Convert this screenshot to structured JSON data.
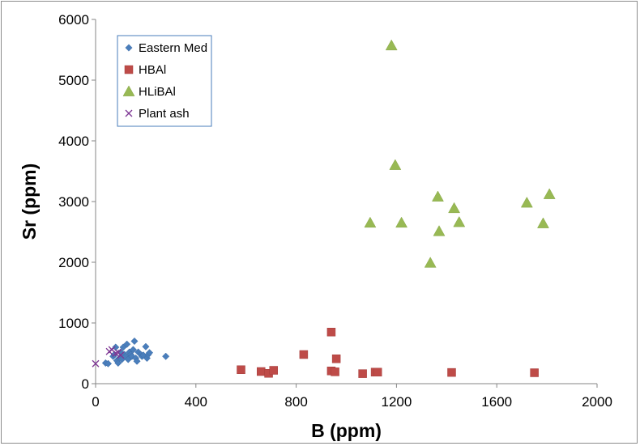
{
  "chart_data": {
    "type": "scatter",
    "title": "",
    "xlabel": "B (ppm)",
    "ylabel": "Sr (ppm)",
    "xlim": [
      0,
      2000
    ],
    "ylim": [
      0,
      6000
    ],
    "xticks": [
      "0",
      "400",
      "800",
      "1200",
      "1600",
      "2000"
    ],
    "yticks": [
      "0",
      "1000",
      "2000",
      "3000",
      "4000",
      "5000",
      "6000"
    ],
    "grid": false,
    "legend_position": "top-left",
    "series": [
      {
        "name": "Eastern Med",
        "marker": "diamond",
        "color": "#4a7ebb",
        "points": [
          [
            40,
            340
          ],
          [
            50,
            330
          ],
          [
            70,
            450
          ],
          [
            75,
            480
          ],
          [
            80,
            600
          ],
          [
            85,
            380
          ],
          [
            90,
            340
          ],
          [
            95,
            420
          ],
          [
            100,
            520
          ],
          [
            105,
            400
          ],
          [
            110,
            600
          ],
          [
            115,
            480
          ],
          [
            120,
            450
          ],
          [
            125,
            650
          ],
          [
            130,
            400
          ],
          [
            135,
            520
          ],
          [
            140,
            480
          ],
          [
            145,
            450
          ],
          [
            150,
            560
          ],
          [
            155,
            700
          ],
          [
            160,
            420
          ],
          [
            165,
            370
          ],
          [
            170,
            520
          ],
          [
            180,
            480
          ],
          [
            185,
            450
          ],
          [
            190,
            470
          ],
          [
            200,
            610
          ],
          [
            205,
            420
          ],
          [
            210,
            480
          ],
          [
            215,
            510
          ],
          [
            280,
            450
          ]
        ]
      },
      {
        "name": "HBAl",
        "marker": "square",
        "color": "#be4b48",
        "points": [
          [
            580,
            230
          ],
          [
            660,
            200
          ],
          [
            690,
            170
          ],
          [
            710,
            220
          ],
          [
            830,
            480
          ],
          [
            940,
            850
          ],
          [
            940,
            210
          ],
          [
            955,
            195
          ],
          [
            960,
            410
          ],
          [
            1065,
            165
          ],
          [
            1115,
            190
          ],
          [
            1125,
            190
          ],
          [
            1420,
            185
          ],
          [
            1750,
            180
          ]
        ]
      },
      {
        "name": "HLiBAl",
        "marker": "triangle",
        "color": "#98b954",
        "points": [
          [
            1180,
            5570
          ],
          [
            1195,
            3600
          ],
          [
            1095,
            2650
          ],
          [
            1220,
            2650
          ],
          [
            1335,
            1990
          ],
          [
            1365,
            3080
          ],
          [
            1370,
            2510
          ],
          [
            1430,
            2890
          ],
          [
            1450,
            2660
          ],
          [
            1720,
            2980
          ],
          [
            1785,
            2640
          ],
          [
            1810,
            3120
          ]
        ]
      },
      {
        "name": "Plant ash",
        "marker": "x",
        "color": "#7e3794",
        "points": [
          [
            0,
            330
          ],
          [
            55,
            530
          ],
          [
            65,
            560
          ],
          [
            80,
            500
          ],
          [
            90,
            510
          ],
          [
            100,
            470
          ]
        ]
      }
    ]
  }
}
